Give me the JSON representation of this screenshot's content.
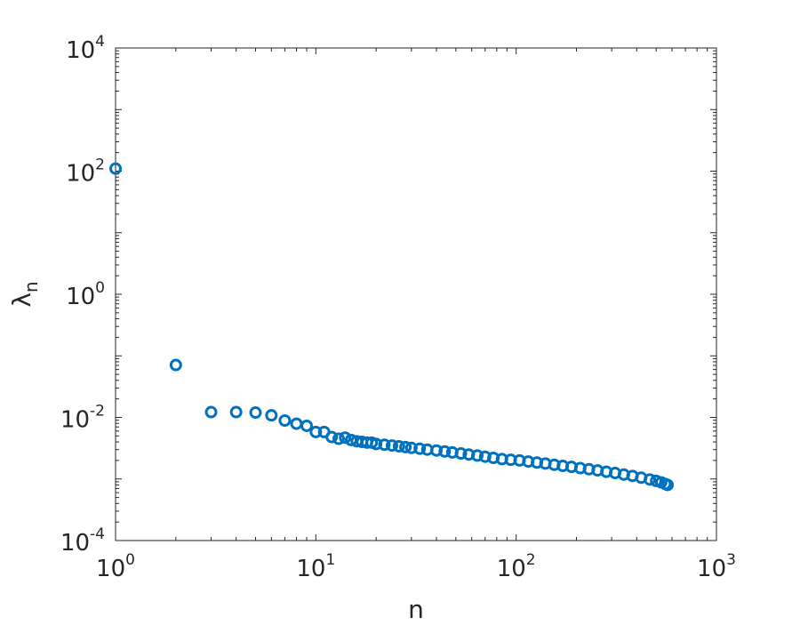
{
  "chart_data": {
    "type": "scatter",
    "title": "",
    "xlabel": "n",
    "ylabel": {
      "symbol": "λ",
      "subscript": "n"
    },
    "xscale": "log",
    "yscale": "log",
    "xlim": [
      1,
      1000
    ],
    "ylim": [
      0.0001,
      10000
    ],
    "grid": false,
    "legend": "none",
    "marker": "open-circle",
    "color": "#0072BD",
    "x_ticks": [
      {
        "value": 1,
        "base": "10",
        "exp": "0"
      },
      {
        "value": 10,
        "base": "10",
        "exp": "1"
      },
      {
        "value": 100,
        "base": "10",
        "exp": "2"
      },
      {
        "value": 1000,
        "base": "10",
        "exp": "3"
      }
    ],
    "y_ticks": [
      {
        "value": 0.0001,
        "base": "10",
        "exp": "-4"
      },
      {
        "value": 0.01,
        "base": "10",
        "exp": "-2"
      },
      {
        "value": 1,
        "base": "10",
        "exp": "0"
      },
      {
        "value": 100,
        "base": "10",
        "exp": "2"
      },
      {
        "value": 10000,
        "base": "10",
        "exp": "4"
      }
    ],
    "points": [
      [
        1,
        110
      ],
      [
        2,
        0.071
      ],
      [
        3,
        0.0122
      ],
      [
        4,
        0.0122
      ],
      [
        5,
        0.012
      ],
      [
        6,
        0.0108
      ],
      [
        7,
        0.0089
      ],
      [
        8,
        0.0079
      ],
      [
        9,
        0.0073
      ],
      [
        10,
        0.0058
      ],
      [
        11,
        0.0058
      ],
      [
        12,
        0.0048
      ],
      [
        13,
        0.0045
      ],
      [
        14,
        0.0047
      ],
      [
        15,
        0.0043
      ],
      [
        16,
        0.0041
      ],
      [
        17,
        0.004
      ],
      [
        18,
        0.0039
      ],
      [
        19,
        0.0039
      ],
      [
        20,
        0.0037
      ],
      [
        22,
        0.0036
      ],
      [
        24,
        0.0035
      ],
      [
        26,
        0.0034
      ],
      [
        28,
        0.0033
      ],
      [
        30,
        0.0032
      ],
      [
        33,
        0.0031
      ],
      [
        36,
        0.003
      ],
      [
        40,
        0.0029
      ],
      [
        44,
        0.0028
      ],
      [
        48,
        0.0027
      ],
      [
        53,
        0.0026
      ],
      [
        58,
        0.0025
      ],
      [
        64,
        0.0024
      ],
      [
        70,
        0.0023
      ],
      [
        77,
        0.0022
      ],
      [
        85,
        0.0021
      ],
      [
        94,
        0.00205
      ],
      [
        104,
        0.002
      ],
      [
        115,
        0.00192
      ],
      [
        127,
        0.00185
      ],
      [
        140,
        0.00178
      ],
      [
        155,
        0.0017
      ],
      [
        171,
        0.00163
      ],
      [
        189,
        0.00157
      ],
      [
        209,
        0.0015
      ],
      [
        231,
        0.00144
      ],
      [
        255,
        0.00138
      ],
      [
        282,
        0.00131
      ],
      [
        312,
        0.00125
      ],
      [
        345,
        0.00118
      ],
      [
        381,
        0.00112
      ],
      [
        421,
        0.00105
      ],
      [
        465,
        0.00098
      ],
      [
        500,
        0.00093
      ],
      [
        530,
        0.00088
      ],
      [
        555,
        0.00083
      ],
      [
        570,
        0.0008
      ]
    ]
  }
}
